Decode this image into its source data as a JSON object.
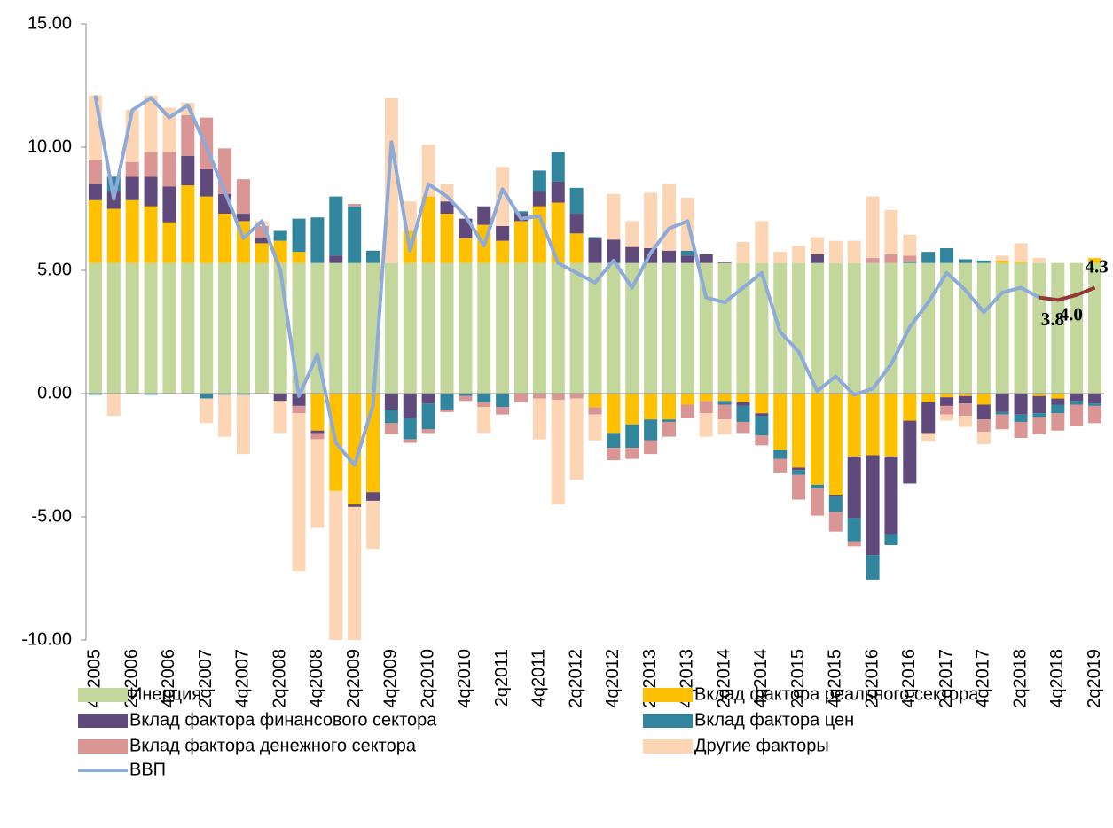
{
  "chart_data": {
    "type": "stacked_bar_line",
    "categories": [
      "4q2005",
      null,
      "2q2006",
      null,
      "4q2006",
      null,
      "2q2007",
      null,
      "4q2007",
      null,
      "2q2008",
      null,
      "4q2008",
      null,
      "2q2009",
      null,
      "4q2009",
      null,
      "2q2010",
      null,
      "4q2010",
      null,
      "2q2011",
      null,
      "4q2011",
      null,
      "2q2012",
      null,
      "4q2012",
      null,
      "2q2013",
      null,
      "4q2013",
      null,
      "2q2014",
      null,
      "4q2014",
      null,
      "2q2015",
      null,
      "4q2015",
      null,
      "2q2016",
      null,
      "4q2016",
      null,
      "2q2017",
      null,
      "4q2017",
      null,
      "2q2018",
      null,
      "4q2018",
      null,
      "2q2019"
    ],
    "ylim": [
      -10,
      15
    ],
    "yticks": [
      {
        "value": -10,
        "label": "-10.00"
      },
      {
        "value": -5,
        "label": "-5.00"
      },
      {
        "value": 0,
        "label": "0.00"
      },
      {
        "value": 5,
        "label": "5.00"
      },
      {
        "value": 10,
        "label": "10.00"
      },
      {
        "value": 15,
        "label": "15.00"
      }
    ],
    "grid": false,
    "series": [
      {
        "name": "Инерция",
        "color": "#c3d69b",
        "values": [
          5.3,
          5.3,
          5.3,
          5.3,
          5.3,
          5.3,
          5.3,
          5.3,
          5.3,
          5.3,
          5.3,
          5.3,
          5.3,
          5.3,
          5.3,
          5.3,
          5.3,
          5.3,
          5.3,
          5.3,
          5.3,
          5.3,
          5.3,
          5.3,
          5.3,
          5.3,
          5.3,
          5.3,
          5.3,
          5.3,
          5.3,
          5.3,
          5.3,
          5.3,
          5.3,
          5.3,
          5.3,
          5.3,
          5.3,
          5.3,
          5.3,
          5.3,
          5.3,
          5.3,
          5.3,
          5.3,
          5.3,
          5.3,
          5.3,
          5.3,
          5.3,
          5.3,
          5.3,
          5.3,
          5.3
        ]
      },
      {
        "name": "Вклад фактора реального сектора",
        "color": "#ffc000",
        "values": [
          2.55,
          2.2,
          2.55,
          2.3,
          1.65,
          3.15,
          2.7,
          2.0,
          1.7,
          0.8,
          0.9,
          0.45,
          -1.5,
          -3.95,
          -4.5,
          -4.0,
          0,
          1.3,
          2.7,
          2.0,
          1.0,
          1.55,
          0.9,
          1.7,
          2.3,
          2.45,
          1.2,
          -0.55,
          -1.6,
          -1.25,
          -1.05,
          -1.05,
          -0.45,
          -0.3,
          -0.3,
          -0.35,
          -0.8,
          -2.3,
          -3.0,
          -3.7,
          -4.1,
          -2.55,
          -2.5,
          -2.55,
          -1.1,
          -0.35,
          -0.15,
          -0.1,
          -0.45,
          0.1,
          0.05,
          -0.1,
          -0.2,
          0,
          0.2
        ]
      },
      {
        "name": "Вклад фактора финансового сектора",
        "color": "#604a7b",
        "values": [
          0.65,
          0.7,
          0.95,
          1.2,
          1.45,
          1.2,
          1.1,
          0.8,
          0.3,
          0.2,
          -0.3,
          -0.5,
          -0.1,
          0.3,
          -0.1,
          -0.35,
          -0.65,
          -1.0,
          -0.4,
          0.5,
          0.8,
          0.75,
          0.6,
          0.3,
          0.6,
          0.85,
          0.8,
          1.0,
          0.95,
          0.65,
          0.6,
          0.5,
          0.3,
          0.35,
          0.05,
          -0.15,
          -0.1,
          0,
          -0.1,
          0.35,
          -0.1,
          -2.5,
          -4.05,
          -3.15,
          -2.55,
          -1.25,
          -0.35,
          -0.3,
          -0.6,
          -0.75,
          -0.85,
          -0.7,
          -0.25,
          -0.3,
          -0.4
        ]
      },
      {
        "name": "Вклад фактора цен",
        "color": "#31859c",
        "values": [
          -0.05,
          0.6,
          0,
          -0.05,
          0,
          0,
          -0.2,
          -0.05,
          -0.05,
          0,
          0.4,
          1.35,
          1.85,
          2.4,
          2.3,
          0.5,
          -0.55,
          -0.85,
          -1.05,
          -0.65,
          -0.1,
          -0.35,
          -0.55,
          0.1,
          0.85,
          1.2,
          1.05,
          0.05,
          -0.6,
          -0.95,
          -0.85,
          -0.1,
          0.2,
          0,
          -0.15,
          -0.65,
          -0.8,
          -0.35,
          -0.2,
          -0.15,
          -0.6,
          -0.95,
          -1.0,
          -0.45,
          0.05,
          0.45,
          0.6,
          0.15,
          0.1,
          -0.1,
          -0.3,
          -0.15,
          -0.35,
          -0.15,
          -0.1
        ]
      },
      {
        "name": "Вклад фактора денежного сектора",
        "color": "#d99694",
        "values": [
          1.0,
          0,
          0.6,
          1.0,
          1.4,
          1.65,
          2.1,
          1.85,
          1.4,
          0.5,
          0,
          -0.3,
          -0.25,
          0,
          0.1,
          0,
          -0.45,
          -0.15,
          -0.15,
          -0.1,
          -0.2,
          -0.2,
          -0.3,
          -0.35,
          -0.2,
          -0.25,
          -0.2,
          -0.3,
          -0.5,
          -0.45,
          -0.55,
          -0.6,
          -0.55,
          -0.5,
          -0.6,
          -0.45,
          -0.4,
          -0.55,
          -1.0,
          -1.1,
          -0.8,
          -0.2,
          0.2,
          0.35,
          0.25,
          0,
          -0.35,
          -0.5,
          -0.5,
          -0.6,
          -0.65,
          -0.7,
          -0.7,
          -0.85,
          -0.7
        ]
      },
      {
        "name": "Другие факторы",
        "color": "#fcd5b5",
        "values": [
          2.6,
          -0.9,
          2.1,
          2.3,
          1.8,
          0.5,
          -1.0,
          -1.7,
          -2.4,
          0.2,
          -1.3,
          -6.4,
          -3.6,
          -6.05,
          -5.4,
          -1.95,
          6.7,
          1.2,
          2.1,
          0.7,
          0,
          -1.05,
          2.4,
          0,
          -1.65,
          -4.25,
          -3.3,
          -1.05,
          1.85,
          1.05,
          2.25,
          2.7,
          2.15,
          -0.95,
          -0.6,
          0.85,
          1.7,
          0.45,
          0.7,
          0.7,
          0.9,
          0.9,
          2.5,
          1.8,
          0.85,
          -0.35,
          -0.25,
          -0.45,
          -0.5,
          0.2,
          0.75,
          0.2,
          0,
          0,
          0
        ]
      }
    ],
    "line": {
      "name": "ВВП",
      "color": "#8eaad8",
      "forecast_color": "#943634",
      "forecast_start": 51,
      "values": [
        12.1,
        7.9,
        11.5,
        12.0,
        11.2,
        11.7,
        10.0,
        8.2,
        6.3,
        7.0,
        5.0,
        -0.1,
        1.6,
        -2.0,
        -2.9,
        -0.5,
        10.2,
        5.8,
        8.5,
        8.0,
        7.2,
        6.0,
        8.3,
        7.1,
        7.2,
        5.3,
        4.9,
        4.5,
        5.4,
        4.3,
        5.7,
        6.7,
        7.0,
        3.9,
        3.7,
        4.3,
        4.9,
        2.5,
        1.7,
        0.1,
        0.7,
        -0.05,
        0.2,
        1.2,
        2.7,
        3.7,
        4.9,
        4.2,
        3.3,
        4.1,
        4.3,
        3.9,
        3.8,
        4.0,
        4.3
      ],
      "value_labels": [
        null,
        null,
        null,
        null,
        null,
        null,
        null,
        null,
        null,
        null,
        null,
        null,
        null,
        null,
        null,
        null,
        null,
        null,
        null,
        null,
        null,
        null,
        null,
        null,
        null,
        null,
        null,
        null,
        null,
        null,
        null,
        null,
        null,
        null,
        null,
        null,
        null,
        null,
        null,
        null,
        null,
        null,
        null,
        null,
        null,
        null,
        null,
        null,
        null,
        null,
        null,
        null,
        "3.8",
        "4.0",
        "4.3"
      ]
    }
  }
}
